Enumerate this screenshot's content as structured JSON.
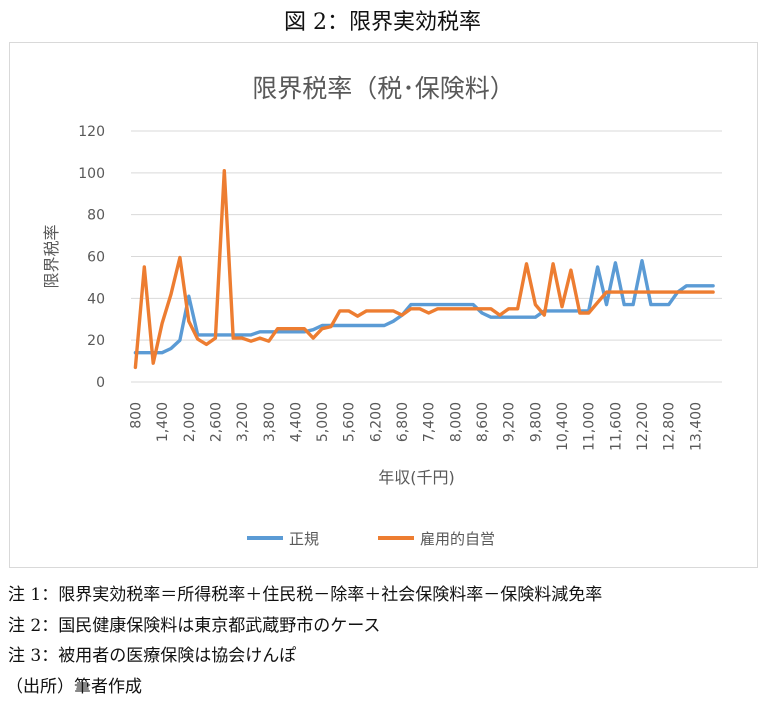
{
  "figure_title": "図 2：限界実効税率",
  "chart_data": {
    "type": "line",
    "title": "限界税率（税･保険料）",
    "xlabel": "年収(千円)",
    "ylabel": "限界税率",
    "ylim": [
      0,
      120
    ],
    "yticks": [
      0,
      20,
      40,
      60,
      80,
      100,
      120
    ],
    "xticks": [
      "800",
      "1,400",
      "2,000",
      "2,600",
      "3,200",
      "3,800",
      "4,400",
      "5,000",
      "5,600",
      "6,200",
      "6,800",
      "7,400",
      "8,000",
      "8,600",
      "9,200",
      "9,800",
      "10,400",
      "11,000",
      "11,600",
      "12,200",
      "12,800",
      "13,400"
    ],
    "x": [
      800,
      1000,
      1200,
      1400,
      1600,
      1800,
      2000,
      2200,
      2400,
      2600,
      2800,
      3000,
      3200,
      3400,
      3600,
      3800,
      4000,
      4200,
      4400,
      4600,
      4800,
      5000,
      5200,
      5400,
      5600,
      5800,
      6000,
      6200,
      6400,
      6600,
      6800,
      7000,
      7200,
      7400,
      7600,
      7800,
      8000,
      8200,
      8400,
      8600,
      8800,
      9000,
      9200,
      9400,
      9600,
      9800,
      10000,
      10200,
      10400,
      10600,
      10800,
      11000,
      11200,
      11400,
      11600,
      11800,
      12000,
      12200,
      12400,
      12600,
      12800,
      13000,
      13200,
      13400,
      13600,
      13800
    ],
    "grid": true,
    "legend_position": "bottom",
    "series": [
      {
        "name": "正規",
        "color": "#5b9bd5",
        "values": [
          14,
          14,
          14,
          14,
          16,
          20,
          41,
          22.5,
          22.5,
          22.5,
          22.5,
          22.5,
          22.5,
          22.5,
          24,
          24,
          24,
          24,
          24,
          24,
          25,
          27,
          27,
          27,
          27,
          27,
          27,
          27,
          27,
          29,
          32,
          37,
          37,
          37,
          37,
          37,
          37,
          37,
          37,
          33,
          31,
          31,
          31,
          31,
          31,
          31,
          34,
          34,
          34,
          34,
          34,
          34,
          55,
          37,
          57,
          37,
          37,
          58,
          37,
          37,
          37,
          43,
          46,
          46,
          46,
          46
        ]
      },
      {
        "name": "雇用的自営",
        "color": "#ed7d31",
        "values": [
          7,
          55,
          9,
          28,
          42,
          59.5,
          29,
          20.5,
          18,
          21,
          101,
          21,
          21,
          19.5,
          21,
          19.5,
          25.5,
          25.5,
          25.5,
          25.5,
          21,
          25.5,
          26.5,
          34,
          34,
          31.5,
          34,
          34,
          34,
          34,
          32,
          35,
          35,
          33,
          35,
          35,
          35,
          35,
          35,
          35,
          35,
          32,
          35,
          35,
          56.5,
          37,
          32,
          56.5,
          36,
          53.5,
          33,
          33,
          38,
          43,
          43,
          43,
          43,
          43,
          43,
          43,
          43,
          43,
          43,
          43,
          43,
          43
        ]
      }
    ]
  },
  "notes": [
    "注 1：限界実効税率＝所得税率＋住民税－除率＋社会保険料率－保険料減免率",
    "注 2：国民健康保険料は東京都武蔵野市のケース",
    "注 3：被用者の医療保険は協会けんぽ",
    "（出所）筆者作成"
  ]
}
